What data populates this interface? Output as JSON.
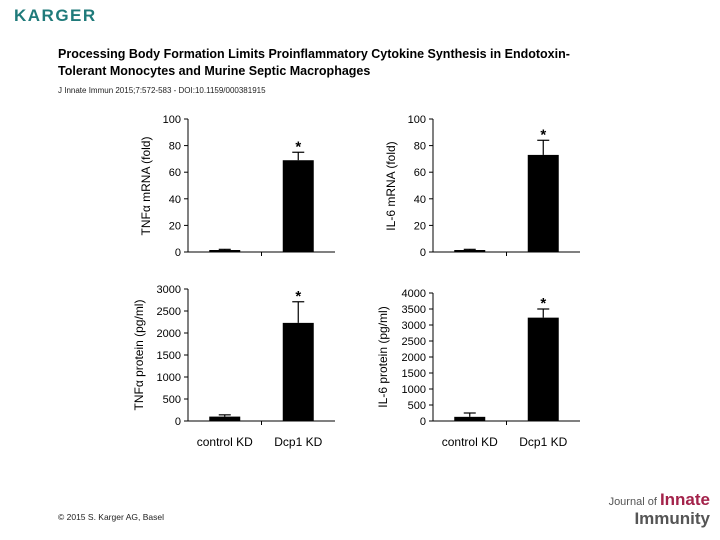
{
  "header": {
    "logo": "KARGER",
    "title_line1": "Processing Body Formation Limits Proinflammatory Cytokine Synthesis in Endotoxin-",
    "title_line2": "Tolerant Monocytes and Murine Septic Macrophages",
    "citation": "J Innate Immun 2015;7:572-583 - DOI:10.1159/000381915"
  },
  "footer": {
    "copyright": "© 2015 S. Karger AG, Basel",
    "journal_prefix": "Journal of",
    "journal_word1": "Innate",
    "journal_word2": "Immunity"
  },
  "chart_data": [
    {
      "type": "bar",
      "categories": [
        "control KD",
        "Dcp1 KD"
      ],
      "values": [
        1.5,
        69
      ],
      "errors": [
        0.5,
        6
      ],
      "significance": [
        "",
        "*"
      ],
      "ylabel": "TNFα mRNA (fold)",
      "ylim": [
        0,
        100
      ],
      "yticks": [
        0,
        20,
        40,
        60,
        80,
        100
      ],
      "show_xlabels": false
    },
    {
      "type": "bar",
      "categories": [
        "control KD",
        "Dcp1 KD"
      ],
      "values": [
        1.5,
        73
      ],
      "errors": [
        0.5,
        11
      ],
      "significance": [
        "",
        "*"
      ],
      "ylabel": "IL-6 mRNA (fold)",
      "ylim": [
        0,
        100
      ],
      "yticks": [
        0,
        20,
        40,
        60,
        80,
        100
      ],
      "show_xlabels": false
    },
    {
      "type": "bar",
      "categories": [
        "control KD",
        "Dcp1 KD"
      ],
      "values": [
        100,
        2230
      ],
      "errors": [
        40,
        480
      ],
      "significance": [
        "",
        "*"
      ],
      "ylabel": "TNFα protein (pg/ml)",
      "ylim": [
        0,
        3000
      ],
      "yticks": [
        0,
        500,
        1000,
        1500,
        2000,
        2500,
        3000
      ],
      "show_xlabels": true
    },
    {
      "type": "bar",
      "categories": [
        "control KD",
        "Dcp1 KD"
      ],
      "values": [
        130,
        3230
      ],
      "errors": [
        120,
        270
      ],
      "significance": [
        "",
        "*"
      ],
      "ylabel": "IL-6 protein (pg/ml)",
      "ylim": [
        0,
        4000
      ],
      "yticks": [
        0,
        500,
        1000,
        1500,
        2000,
        2500,
        3000,
        3500,
        4000
      ],
      "show_xlabels": true
    }
  ]
}
